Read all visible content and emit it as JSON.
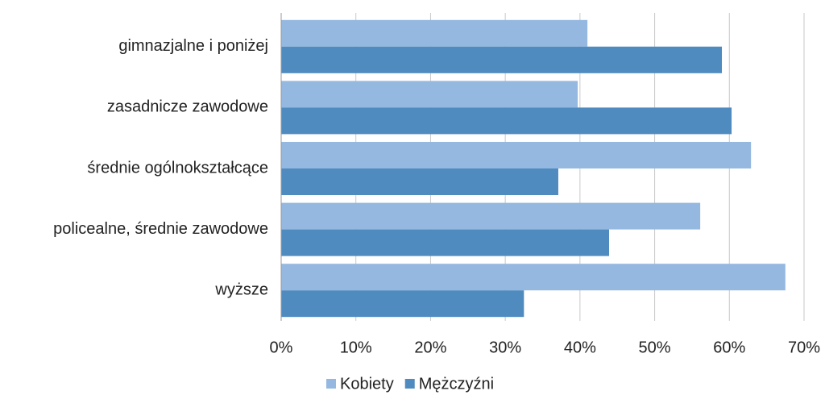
{
  "chart_data": {
    "type": "barh",
    "categories": [
      "gimnazjalne i poniżej",
      "zasadnicze zawodowe",
      "średnie ogólnokształcące",
      "policealne, średnie zawodowe",
      "wyższe"
    ],
    "series": [
      {
        "name": "Kobiety",
        "color": "#95b8e0",
        "values": [
          41,
          39.7,
          62.9,
          56.1,
          67.5
        ]
      },
      {
        "name": "Mężczyźni",
        "color": "#4f8bbf",
        "values": [
          59,
          60.3,
          37.1,
          43.9,
          32.5
        ]
      }
    ],
    "xlim": [
      0,
      70
    ],
    "xticks": [
      {
        "value": 0,
        "label": "0%"
      },
      {
        "value": 10,
        "label": "10%"
      },
      {
        "value": 20,
        "label": "20%"
      },
      {
        "value": 30,
        "label": "30%"
      },
      {
        "value": 40,
        "label": "40%"
      },
      {
        "value": 50,
        "label": "50%"
      },
      {
        "value": 60,
        "label": "60%"
      },
      {
        "value": 70,
        "label": "70%"
      }
    ],
    "grid": true,
    "legend": "bottom"
  }
}
